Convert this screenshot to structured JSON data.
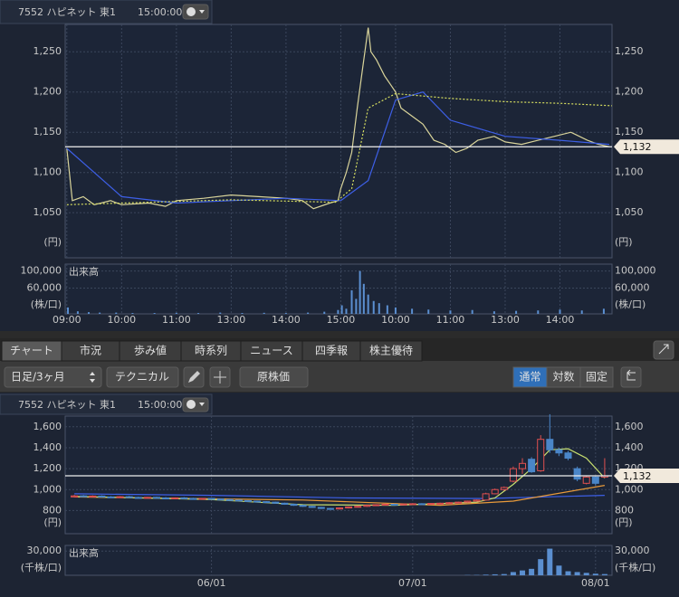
{
  "header": {
    "code_name": "7552 ハピネット 東1",
    "time": "15:00:00"
  },
  "tabs": [
    "チャート",
    "市況",
    "歩み値",
    "時系列",
    "ニュース",
    "四季報",
    "株主優待"
  ],
  "toolbar": {
    "period": "日足/3ヶ月",
    "technical": "テクニカル",
    "raw_price": "原株価",
    "modes": [
      "通常",
      "対数",
      "固定"
    ]
  },
  "chart_data": [
    {
      "type": "line",
      "ylim": [
        994,
        1284
      ],
      "xlim": [
        -0.03,
        9.95
      ],
      "grid": true,
      "yticks": [
        {
          "value": 1050,
          "label": "1,050"
        },
        {
          "value": 1100,
          "label": "1,100"
        },
        {
          "value": 1150,
          "label": "1,150"
        },
        {
          "value": 1200,
          "label": "1,200"
        },
        {
          "value": 1250,
          "label": "1,250"
        }
      ],
      "y_unit": "(円)",
      "current_price": {
        "value": 1132,
        "label": "1,132"
      },
      "series": [
        {
          "color": "#d9d49a",
          "style": "solid",
          "x": [
            0,
            0.1,
            0.3,
            0.5,
            0.8,
            1.0,
            1.5,
            1.8,
            2.0,
            2.5,
            3.0,
            3.5,
            4.0,
            4.3,
            4.5,
            4.8,
            4.95,
            5.0,
            5.1,
            5.2,
            5.3,
            5.4,
            5.5,
            5.55,
            5.65,
            5.8,
            5.9,
            6.0,
            6.1,
            6.3,
            6.5,
            6.7,
            6.9,
            7.1,
            7.3,
            7.5,
            7.8,
            8.0,
            8.3,
            8.6,
            8.9,
            9.2,
            9.5,
            9.7,
            9.9
          ],
          "values": [
            1130,
            1065,
            1070,
            1060,
            1065,
            1060,
            1062,
            1058,
            1065,
            1068,
            1072,
            1070,
            1068,
            1065,
            1055,
            1062,
            1065,
            1080,
            1100,
            1125,
            1180,
            1230,
            1280,
            1250,
            1240,
            1220,
            1210,
            1200,
            1180,
            1170,
            1160,
            1140,
            1135,
            1125,
            1130,
            1140,
            1145,
            1138,
            1135,
            1140,
            1145,
            1150,
            1140,
            1135,
            1132
          ]
        },
        {
          "color": "#3d5fe6",
          "style": "solid",
          "x": [
            0,
            0.5,
            1,
            2,
            3,
            4,
            5,
            5.5,
            6,
            6.5,
            7,
            8,
            9,
            9.9
          ],
          "values": [
            1130,
            1100,
            1070,
            1062,
            1065,
            1068,
            1065,
            1090,
            1190,
            1200,
            1165,
            1145,
            1140,
            1135
          ]
        },
        {
          "color": "#d8e060",
          "style": "dotted",
          "x": [
            0,
            1,
            3,
            4.9,
            5.2,
            5.5,
            6,
            7,
            8,
            9,
            9.95
          ],
          "values": [
            1060,
            1062,
            1066,
            1063,
            1080,
            1180,
            1198,
            1192,
            1188,
            1186,
            1183
          ]
        }
      ]
    },
    {
      "type": "bar",
      "label": "出来高",
      "ylim": [
        0,
        116000
      ],
      "xlim": [
        -0.03,
        9.95
      ],
      "grid": true,
      "color": "#5b8fd0",
      "yticks": [
        {
          "value": 60000,
          "label": "60,000"
        },
        {
          "value": 100000,
          "label": "100,000"
        }
      ],
      "y_unit": "(株/口)",
      "xticks": [
        {
          "value": 0,
          "label": "09:00"
        },
        {
          "value": 1,
          "label": "10:00"
        },
        {
          "value": 2,
          "label": "11:00"
        },
        {
          "value": 3,
          "label": "13:00"
        },
        {
          "value": 4,
          "label": "14:00"
        },
        {
          "value": 5,
          "label": "15:00"
        },
        {
          "value": 6,
          "label": "10:00"
        },
        {
          "value": 7,
          "label": "11:00"
        },
        {
          "value": 8,
          "label": "13:00"
        },
        {
          "value": 9,
          "label": "14:00"
        }
      ],
      "x": [
        0.02,
        0.2,
        0.4,
        0.6,
        0.9,
        1.2,
        1.6,
        2.0,
        2.4,
        2.8,
        3.2,
        3.6,
        4.0,
        4.4,
        4.7,
        4.95,
        5.02,
        5.1,
        5.2,
        5.28,
        5.35,
        5.42,
        5.5,
        5.6,
        5.7,
        5.85,
        6.0,
        6.3,
        6.6,
        7.0,
        7.4,
        7.8,
        8.2,
        8.6,
        9.0,
        9.4,
        9.8
      ],
      "values": [
        15000,
        6000,
        4000,
        3000,
        3000,
        2000,
        2000,
        2500,
        2000,
        3000,
        2000,
        2500,
        2000,
        3000,
        5000,
        9000,
        20000,
        12000,
        55000,
        35000,
        100000,
        70000,
        45000,
        30000,
        25000,
        20000,
        15000,
        12000,
        10000,
        8000,
        9000,
        6000,
        7000,
        8000,
        10000,
        8000,
        12000
      ]
    },
    {
      "type": "candlestick",
      "ylim": [
        579,
        1702
      ],
      "xlim": [
        -16,
        43.8
      ],
      "grid": true,
      "up_color": "#e05050",
      "down_color": "#4a86c8",
      "yticks": [
        800,
        {
          "value": 1000,
          "label": "1,000"
        },
        {
          "value": 1200,
          "label": "1,200"
        },
        {
          "value": 1400,
          "label": "1,400"
        },
        {
          "value": 1600,
          "label": "1,600"
        }
      ],
      "y_unit": "(円)",
      "current_price": {
        "value": 1132,
        "label": "1,132"
      },
      "x": [
        -15,
        -14,
        -13,
        -12,
        -11,
        -10,
        -9,
        -8,
        -7,
        -6,
        -5,
        -4,
        -3,
        -2,
        -1,
        0,
        1,
        2,
        3,
        4,
        5,
        6,
        7,
        8,
        9,
        10,
        11,
        12,
        13,
        14,
        15,
        16,
        17,
        18,
        19,
        20,
        21,
        22,
        23,
        24,
        25,
        26,
        27,
        28,
        29,
        30,
        31,
        32,
        33,
        34,
        35,
        36,
        37,
        38,
        39,
        40,
        41,
        42,
        43
      ],
      "open": [
        930,
        940,
        935,
        938,
        930,
        928,
        932,
        925,
        922,
        926,
        920,
        918,
        921,
        915,
        912,
        916,
        910,
        905,
        900,
        895,
        890,
        885,
        880,
        870,
        860,
        850,
        840,
        830,
        820,
        815,
        825,
        835,
        840,
        850,
        855,
        860,
        858,
        862,
        865,
        860,
        868,
        870,
        875,
        880,
        890,
        900,
        960,
        1000,
        1080,
        1200,
        1290,
        1180,
        1480,
        1380,
        1350,
        1200,
        1060,
        1120,
        1120
      ],
      "high": [
        950,
        948,
        945,
        945,
        938,
        938,
        940,
        932,
        930,
        932,
        928,
        925,
        928,
        922,
        920,
        920,
        915,
        910,
        905,
        900,
        895,
        890,
        885,
        875,
        865,
        855,
        845,
        835,
        825,
        830,
        840,
        845,
        855,
        860,
        865,
        865,
        865,
        870,
        870,
        872,
        875,
        880,
        885,
        895,
        905,
        970,
        1010,
        1030,
        1220,
        1300,
        1310,
        1520,
        1720,
        1400,
        1370,
        1220,
        1130,
        1130,
        1300
      ],
      "low": [
        925,
        930,
        930,
        925,
        922,
        925,
        920,
        918,
        918,
        915,
        912,
        912,
        910,
        908,
        908,
        905,
        900,
        895,
        890,
        885,
        880,
        875,
        865,
        855,
        845,
        835,
        825,
        815,
        808,
        810,
        820,
        830,
        835,
        845,
        850,
        852,
        852,
        858,
        855,
        855,
        862,
        865,
        870,
        875,
        885,
        895,
        955,
        990,
        1070,
        1150,
        1160,
        1170,
        1350,
        1320,
        1280,
        1080,
        1050,
        1040,
        1110
      ],
      "close": [
        940,
        935,
        938,
        930,
        928,
        932,
        925,
        922,
        926,
        920,
        918,
        921,
        915,
        912,
        916,
        910,
        905,
        900,
        895,
        890,
        885,
        880,
        870,
        860,
        850,
        840,
        830,
        820,
        815,
        825,
        835,
        840,
        850,
        855,
        860,
        858,
        862,
        865,
        860,
        868,
        870,
        875,
        880,
        890,
        900,
        960,
        1000,
        1020,
        1200,
        1250,
        1170,
        1480,
        1380,
        1350,
        1300,
        1100,
        1120,
        1060,
        1132
      ],
      "series": [
        {
          "color": "#3d5fe6",
          "style": "solid",
          "x": [
            -15,
            0,
            15,
            30,
            43
          ],
          "values": [
            960,
            945,
            920,
            915,
            945
          ]
        },
        {
          "color": "#e89a3a",
          "style": "solid",
          "x": [
            -15,
            10,
            25,
            33,
            43
          ],
          "values": [
            930,
            900,
            850,
            890,
            1040
          ]
        },
        {
          "color": "#c8e070",
          "style": "solid",
          "x": [
            -15,
            0,
            10,
            20,
            29,
            31,
            33,
            35,
            37,
            39,
            41,
            43
          ],
          "values": [
            935,
            905,
            855,
            850,
            880,
            920,
            1050,
            1200,
            1380,
            1390,
            1300,
            1110
          ]
        }
      ]
    },
    {
      "type": "bar",
      "label": "出来高",
      "ylim": [
        0,
        37000
      ],
      "xlim": [
        -16,
        43.8
      ],
      "grid": true,
      "color": "#5b8fd0",
      "yticks": [
        {
          "value": 30000,
          "label": "30,000"
        }
      ],
      "y_unit": "(千株/口)",
      "xticks": [
        {
          "value": 0,
          "label": "06/01"
        },
        {
          "value": 22,
          "label": "07/01"
        },
        {
          "value": 42,
          "label": "08/01"
        }
      ],
      "x": [
        28,
        29,
        30,
        31,
        32,
        33,
        34,
        35,
        36,
        37,
        38,
        39,
        40,
        41,
        42,
        43
      ],
      "values": [
        300,
        400,
        800,
        1200,
        1500,
        4000,
        6000,
        8000,
        20000,
        33000,
        12000,
        5000,
        4000,
        3000,
        2000,
        1500
      ]
    }
  ]
}
